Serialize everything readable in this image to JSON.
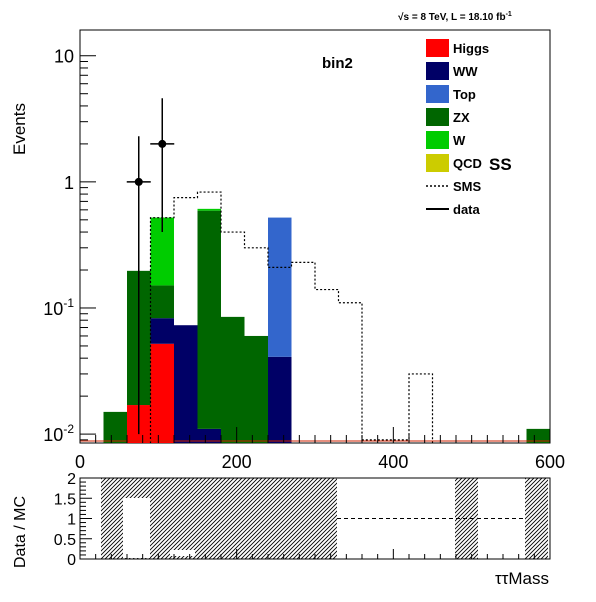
{
  "header": {
    "lumi_prefix": "√s = 8 TeV, L = 18.10 fb",
    "lumi_exp": "-1"
  },
  "main_plot": {
    "bin_label": "bin2",
    "ss_label": "SS",
    "ylabel": "Events",
    "yticks": [
      {
        "value": 0.01,
        "base": "10",
        "exp": "-2"
      },
      {
        "value": 0.1,
        "base": "10",
        "exp": "-1"
      },
      {
        "value": 1,
        "base": "1",
        "exp": ""
      },
      {
        "value": 10,
        "base": "10",
        "exp": ""
      }
    ],
    "xticks": [
      0,
      200,
      400,
      600
    ]
  },
  "legend": {
    "entries": [
      {
        "label": "Higgs",
        "style": "box",
        "color": "#ff0000"
      },
      {
        "label": "WW",
        "style": "box",
        "color": "#000066"
      },
      {
        "label": "Top",
        "style": "box",
        "color": "#3366cc"
      },
      {
        "label": "ZX",
        "style": "box",
        "color": "#006600"
      },
      {
        "label": "W",
        "style": "box",
        "color": "#00cc00"
      },
      {
        "label": "QCD",
        "style": "box",
        "color": "#cccc00"
      },
      {
        "label": "SMS",
        "style": "dotted"
      },
      {
        "label": "data",
        "style": "line"
      }
    ]
  },
  "ratio_plot": {
    "ylabel": "Data / MC",
    "yticks": [
      "0",
      "0.5",
      "1",
      "1.5",
      "2"
    ],
    "xlabel": "ττMass"
  },
  "chart_data": {
    "type": "bar",
    "stacked": true,
    "y_scale": "log",
    "xlim": [
      0,
      600
    ],
    "ylim": [
      0.0085,
      16
    ],
    "bin_width": 30,
    "bin_low_edges": [
      30,
      60,
      90,
      120,
      150,
      180,
      210,
      240,
      270,
      300,
      330,
      360,
      390,
      420,
      450,
      480,
      510,
      540,
      570
    ],
    "series": [
      {
        "name": "Higgs",
        "color": "#ff0000",
        "values": [
          0,
          0.017,
          0.052,
          0,
          0,
          0,
          0,
          0,
          0,
          0,
          0,
          0,
          0,
          0,
          0,
          0,
          0,
          0,
          0
        ]
      },
      {
        "name": "WW",
        "color": "#000066",
        "values": [
          0,
          0,
          0.031,
          0.073,
          0.011,
          0,
          0,
          0.041,
          0,
          0,
          0,
          0,
          0,
          0,
          0,
          0,
          0,
          0,
          0
        ]
      },
      {
        "name": "Top",
        "color": "#3366cc",
        "values": [
          0,
          0,
          0,
          0,
          0,
          0,
          0,
          0.48,
          0,
          0,
          0,
          0,
          0,
          0,
          0,
          0,
          0,
          0,
          0
        ]
      },
      {
        "name": "ZX",
        "color": "#006600",
        "values": [
          0.015,
          0.18,
          0.068,
          0,
          0.58,
          0.085,
          0.06,
          0,
          0,
          0,
          0,
          0,
          0,
          0,
          0,
          0,
          0,
          0,
          0.011
        ]
      },
      {
        "name": "W",
        "color": "#00cc00",
        "values": [
          0,
          0,
          0.37,
          0,
          0.02,
          0,
          0,
          0,
          0,
          0,
          0,
          0,
          0,
          0,
          0,
          0,
          0,
          0,
          0
        ]
      },
      {
        "name": "QCD",
        "color": "#cccc00",
        "values": [
          0,
          0,
          0,
          0,
          0,
          0,
          0,
          0,
          0,
          0,
          0,
          0,
          0,
          0,
          0,
          0,
          0,
          0,
          0
        ]
      }
    ],
    "sms": {
      "name": "SMS",
      "edges": [
        90,
        120,
        150,
        180,
        210,
        240,
        270,
        300,
        330,
        360,
        390,
        420,
        450
      ],
      "values": [
        0.52,
        0.75,
        0.83,
        0.4,
        0.3,
        0.21,
        0.23,
        0.14,
        0.11,
        0.009,
        0.009,
        0.03
      ]
    },
    "data_points": [
      {
        "x": 75,
        "y": 1,
        "yerr_low": 0.99,
        "yerr_high": 1.3
      },
      {
        "x": 105,
        "y": 2,
        "yerr_low": 1.6,
        "yerr_high": 2.6
      }
    ],
    "ratio": {
      "ylim": [
        0,
        2
      ],
      "reference_line": 1
    }
  }
}
